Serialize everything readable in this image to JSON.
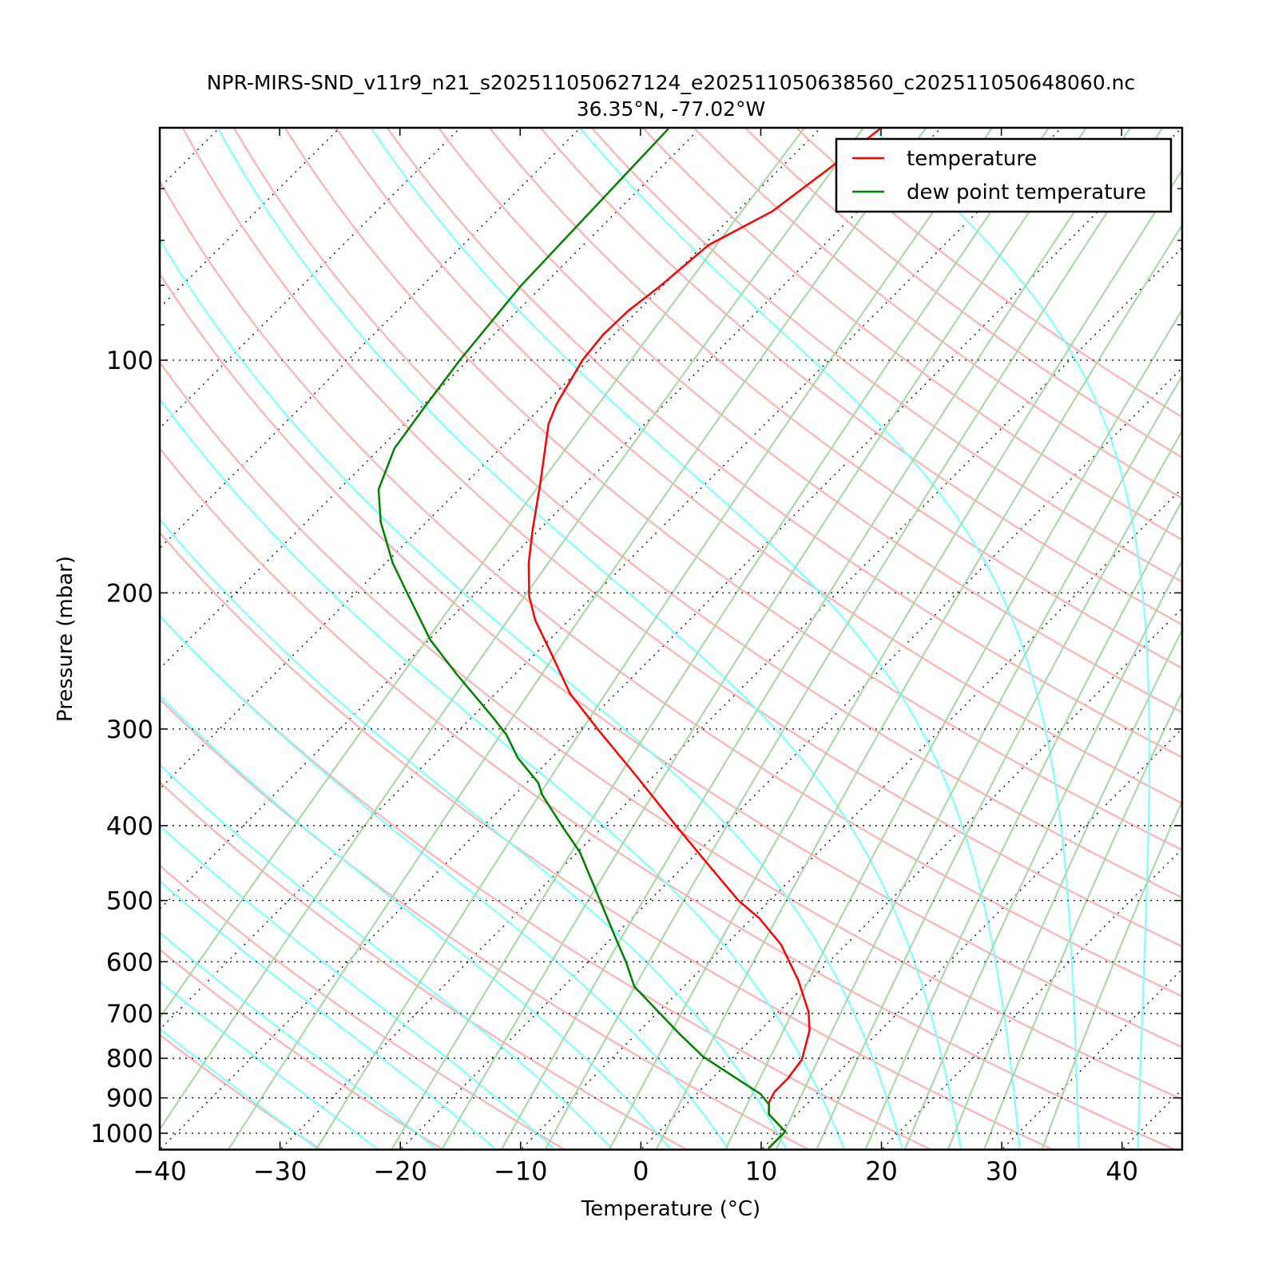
{
  "chart_data": {
    "type": "line",
    "subtype": "skew-T log-P",
    "title": "NPR-MIRS-SND_v11r9_n21_s202511050627124_e202511050638560_c202511050648060.nc",
    "subtitle": "36.35°N, -77.02°W",
    "xlabel": "Temperature (°C)",
    "ylabel": "Pressure (mbar)",
    "xlim": [
      -40,
      45
    ],
    "ylim": [
      1050,
      50
    ],
    "skew_angle_deg": 45,
    "x_ticks": [
      -40,
      -30,
      -20,
      -10,
      0,
      10,
      20,
      30,
      40
    ],
    "x_tick_labels": [
      "−40",
      "−30",
      "−20",
      "−10",
      "0",
      "10",
      "20",
      "30",
      "40"
    ],
    "y_ticks": [
      100,
      200,
      300,
      400,
      500,
      600,
      700,
      800,
      900,
      1000
    ],
    "y_tick_labels": [
      "100",
      "200",
      "300",
      "400",
      "500",
      "600",
      "700",
      "800",
      "900",
      "1000"
    ],
    "y_minor_ticks": [
      50,
      60,
      70,
      80,
      90
    ],
    "grid": "dotted horizontal at pressure ticks",
    "legend": {
      "position": "top-right",
      "entries": [
        "temperature",
        "dew point temperature"
      ]
    },
    "series": [
      {
        "name": "temperature",
        "color": "#ff0000",
        "pressure": [
          1046,
          995,
          945,
          918,
          911,
          884,
          849,
          803,
          736,
          697,
          634,
          570,
          527,
          500,
          438,
          401,
          344,
          301,
          270,
          239,
          217,
          202,
          183,
          166,
          143.5,
          121,
          114,
          100,
          92.7,
          86.3,
          80.2,
          71,
          64.2,
          55.7,
          50.2
        ],
        "temperature": [
          10.5,
          10.5,
          7.7,
          6.9,
          6.7,
          6.3,
          6.3,
          5.9,
          4.1,
          2.5,
          -1.0,
          -5.4,
          -9.4,
          -12.6,
          -19.4,
          -23.9,
          -31.6,
          -38.4,
          -43.8,
          -48.8,
          -52.8,
          -55.3,
          -58.1,
          -60.5,
          -63.9,
          -68.0,
          -69.0,
          -70.5,
          -70.9,
          -70.8,
          -70.2,
          -69.6,
          -67.1,
          -65.8,
          -65.0
        ]
      },
      {
        "name": "dew point temperature",
        "color": "#007f00",
        "pressure": [
          1046,
          995,
          945,
          918,
          890,
          843,
          796,
          744,
          646,
          601,
          559,
          500,
          433,
          401,
          365,
          352,
          327,
          305,
          290,
          254,
          230,
          200.6,
          183,
          162,
          147,
          130,
          115.4,
          100,
          80.2,
          50.2
        ],
        "temperature": [
          10.5,
          10.5,
          7.7,
          6.9,
          5.35,
          1.5,
          -2.55,
          -6.4,
          -14.1,
          -16.8,
          -19.7,
          -24.1,
          -29.8,
          -33.4,
          -37.7,
          -39.05,
          -42.8,
          -45.7,
          -48.2,
          -55.0,
          -59.9,
          -65.6,
          -69.4,
          -73.8,
          -76.7,
          -78.8,
          -79.7,
          -80.7,
          -81.8,
          -82.6
        ]
      }
    ],
    "background_lines": {
      "isotherms_c": {
        "start": -130,
        "stop": 40,
        "step": 10,
        "color": "#000000",
        "style": "dotted"
      },
      "dry_adiabats_c_at_1000": {
        "start": -30,
        "stop": 200,
        "step": 10,
        "color": "#ffb0b0"
      },
      "moist_adiabats_c_at_1000": {
        "start": -30,
        "stop": 50,
        "step": 5,
        "color": "#80ffff"
      },
      "mixing_ratios_kgkg": {
        "values": [
          5e-05,
          0.0001,
          0.0002,
          0.0004,
          0.0007,
          0.001,
          0.0015,
          0.002,
          0.003,
          0.004,
          0.006,
          0.008,
          0.01,
          0.013,
          0.016,
          0.02,
          0.024,
          0.032
        ],
        "color": "#aad8aa"
      }
    }
  }
}
